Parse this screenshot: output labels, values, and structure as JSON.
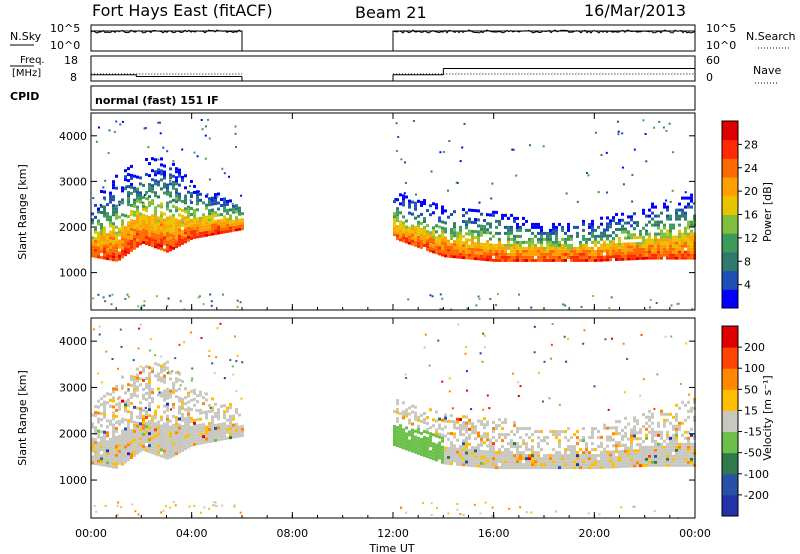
{
  "header": {
    "station": "Fort Hays East (fitACF)",
    "beam": "Beam 21",
    "date": "16/Mar/2013"
  },
  "strips": {
    "nsky_label": "N.Sky",
    "nsearch_label": "N.Search",
    "nsky_ticks": [
      "10^5",
      "10^0"
    ],
    "nsearch_ticks": [
      "10^5",
      "10^0"
    ],
    "freq_label_1": "Freq.",
    "freq_label_2": "[MHz]",
    "freq_ticks": [
      "18",
      "8"
    ],
    "nave_label": "Nave",
    "nave_ticks": [
      "60",
      "0"
    ],
    "cpid_label": "CPID",
    "cpid_value": "normal (fast) 151 IF"
  },
  "panels": {
    "ylabel": "Slant Range [km]",
    "xlabel": "Time UT",
    "power_cbar_label": "Power [dB]",
    "velocity_cbar_label": "Velocity [m s⁻¹]"
  },
  "colors": {
    "power_scale": [
      "#0000ff",
      "#1e4fb4",
      "#2f7a6e",
      "#3c9a5a",
      "#7fbf3f",
      "#e8c400",
      "#ffa000",
      "#ff6a00",
      "#ff2a00",
      "#e00000"
    ],
    "velocity_scale": [
      "#2233aa",
      "#2a4fa6",
      "#2f7a4a",
      "#6cc04a",
      "#c8c8c0",
      "#ffbf00",
      "#ff8800",
      "#ff4400",
      "#e00000"
    ]
  },
  "chart_data": [
    {
      "type": "heatmap",
      "title": "Power",
      "x_label": "Time UT",
      "y_label": "Slant Range [km]",
      "x_ticks": [
        "00:00",
        "04:00",
        "08:00",
        "12:00",
        "16:00",
        "20:00",
        "00:00"
      ],
      "x_range_hours": [
        0,
        24
      ],
      "y_ticks": [
        1000,
        2000,
        3000,
        4000
      ],
      "y_range_km": [
        180,
        4500
      ],
      "colorbar": {
        "label": "Power [dB]",
        "ticks": [
          4,
          8,
          12,
          16,
          20,
          24,
          28
        ],
        "range": [
          0,
          32
        ]
      },
      "data_gaps_hours": [
        [
          6.0,
          12.0
        ]
      ],
      "echo_bands": [
        {
          "t_start": 0.0,
          "t_end": 6.0,
          "range_low_km": [
            1400,
            1300,
            1700,
            1500,
            1800,
            1900,
            2000
          ],
          "range_high_km": [
            2600,
            3200,
            3500,
            3600,
            3000,
            2800,
            2600
          ],
          "peak_power_db": 28
        },
        {
          "t_start": 12.0,
          "t_end": 24.0,
          "range_low_km": [
            1800,
            1400,
            1300,
            1300,
            1300,
            1350,
            1350
          ],
          "range_high_km": [
            2800,
            2500,
            2400,
            2100,
            2200,
            2500,
            2800
          ],
          "peak_power_db": 30
        }
      ]
    },
    {
      "type": "heatmap",
      "title": "Velocity",
      "x_label": "Time UT",
      "y_label": "Slant Range [km]",
      "x_ticks": [
        "00:00",
        "04:00",
        "08:00",
        "12:00",
        "16:00",
        "20:00",
        "00:00"
      ],
      "x_range_hours": [
        0,
        24
      ],
      "y_ticks": [
        1000,
        2000,
        3000,
        4000
      ],
      "y_range_km": [
        180,
        4500
      ],
      "colorbar": {
        "label": "Velocity [m s⁻¹]",
        "ticks": [
          200,
          100,
          50,
          15,
          -15,
          -50,
          -100,
          -200
        ],
        "range": [
          -250,
          250
        ]
      },
      "data_gaps_hours": [
        [
          6.0,
          12.0
        ]
      ],
      "dominant_velocity_class": "-15 to 15 (ground scatter, grey)"
    },
    {
      "type": "line",
      "title": "N.Sky / N.Search",
      "y_ticks": [
        "10^0",
        "10^5"
      ],
      "x_range_hours": [
        0,
        24
      ],
      "segments": [
        [
          0.0,
          6.0
        ],
        [
          12.0,
          24.0
        ]
      ]
    },
    {
      "type": "line",
      "title": "Freq. [MHz] / Nave",
      "freq_ticks": [
        8,
        18
      ],
      "nave_ticks": [
        0,
        60
      ],
      "freq_mhz_segments": [
        {
          "t": [
            0.0,
            1.8
          ],
          "value": 10.5
        },
        {
          "t": [
            1.8,
            6.0
          ],
          "value": 9.8
        },
        {
          "t": [
            12.0,
            14.0
          ],
          "value": 10.5
        },
        {
          "t": [
            14.0,
            24.0
          ],
          "value": 13.0
        }
      ]
    }
  ]
}
